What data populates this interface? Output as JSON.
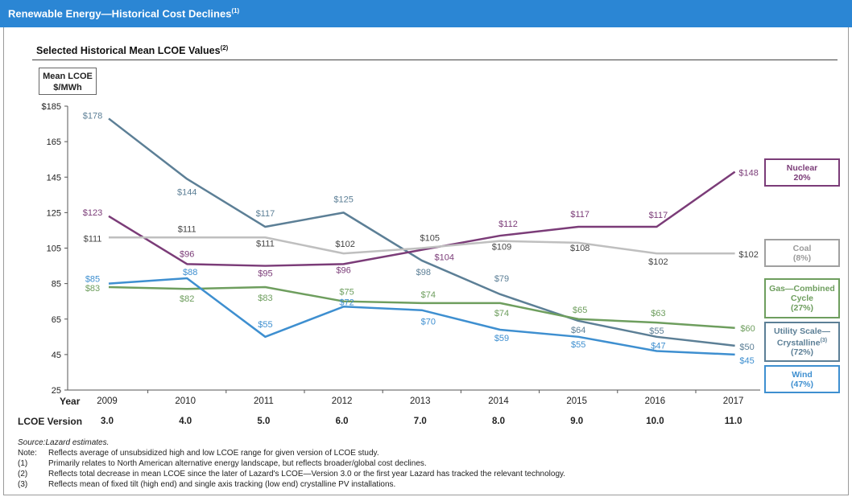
{
  "header": {
    "title": "Renewable Energy—Historical Cost Declines",
    "title_sup": "(1)"
  },
  "subtitle": {
    "text": "Selected Historical Mean LCOE Values",
    "sup": "(2)"
  },
  "unit_box": {
    "line1": "Mean LCOE",
    "line2": "$/MWh"
  },
  "rows": {
    "year_label": "Year",
    "version_label": "LCOE Version"
  },
  "chart_data": {
    "type": "line",
    "ylim": [
      25,
      185
    ],
    "y_ticks": [
      25,
      45,
      65,
      85,
      105,
      125,
      145,
      165,
      185
    ],
    "y_tick_labels": [
      "25",
      "45",
      "65",
      "85",
      "105",
      "125",
      "145",
      "165",
      "$185"
    ],
    "x": [
      "2009",
      "2010",
      "2011",
      "2012",
      "2013",
      "2014",
      "2015",
      "2016",
      "2017"
    ],
    "versions": [
      "3.0",
      "4.0",
      "5.0",
      "6.0",
      "7.0",
      "8.0",
      "9.0",
      "10.0",
      "11.0"
    ],
    "series": [
      {
        "key": "utility",
        "values": [
          178,
          144,
          117,
          125,
          98,
          79,
          64,
          55,
          50
        ],
        "labels": [
          "$178",
          "$144",
          "$117",
          "$125",
          "$98",
          "$79",
          "$64",
          "$55",
          "$50"
        ],
        "color": "#5c7f96"
      },
      {
        "key": "nuclear",
        "values": [
          123,
          96,
          95,
          96,
          104,
          112,
          117,
          117,
          148
        ],
        "labels": [
          "$123",
          "$96",
          "$95",
          "$96",
          "$104",
          "$112",
          "$117",
          "$117",
          "$148"
        ],
        "color": "#7b3c78"
      },
      {
        "key": "coal",
        "values": [
          111,
          111,
          111,
          102,
          105,
          109,
          108,
          102,
          102
        ],
        "labels": [
          "$111",
          "$111",
          "$111",
          "$102",
          "$105",
          "$109",
          "$108",
          "$102",
          "$102"
        ],
        "color": "#bfbfbf"
      },
      {
        "key": "gas",
        "values": [
          83,
          82,
          83,
          75,
          74,
          74,
          65,
          63,
          60
        ],
        "labels": [
          "$83",
          "$82",
          "$83",
          "$75",
          "$74",
          "$74",
          "$65",
          "$63",
          "$60"
        ],
        "color": "#6e9e5e"
      },
      {
        "key": "wind",
        "values": [
          85,
          88,
          55,
          72,
          70,
          59,
          55,
          47,
          45
        ],
        "labels": [
          "$85",
          "$88",
          "$55",
          "$72",
          "$70",
          "$59",
          "$55",
          "$47",
          "$45"
        ],
        "color": "#3e8fd0"
      }
    ]
  },
  "legend": {
    "nuclear": {
      "line1": "Nuclear",
      "line2": "20%",
      "color": "#7b3c78"
    },
    "coal": {
      "line1": "Coal",
      "line2": "(8%)",
      "color": "#a0a0a0"
    },
    "gas": {
      "line1": "Gas—Combined",
      "line2": "Cycle",
      "line3": "(27%)",
      "color": "#6e9e5e"
    },
    "utility": {
      "line1": "Utility Scale—",
      "line2": "Crystalline",
      "sup": "(3)",
      "line3": "(72%)",
      "color": "#5c7f96"
    },
    "wind": {
      "line1": "Wind",
      "line2": "(47%)",
      "color": "#3e8fd0"
    }
  },
  "notes": {
    "source_label": "Source:",
    "source_text": "Lazard estimates.",
    "note_key": "Note:",
    "note_text": "Reflects average of unsubsidized high and low LCOE range for given version of LCOE study.",
    "n1_key": "(1)",
    "n1_text": "Primarily relates to North American alternative energy landscape, but reflects broader/global cost declines.",
    "n2_key": "(2)",
    "n2_text": "Reflects total decrease in mean LCOE since the later of Lazard's LCOE—Version 3.0 or the first year Lazard has tracked the relevant technology.",
    "n3_key": "(3)",
    "n3_text": "Reflects mean of fixed tilt (high end) and single axis tracking (low end) crystalline PV installations."
  }
}
